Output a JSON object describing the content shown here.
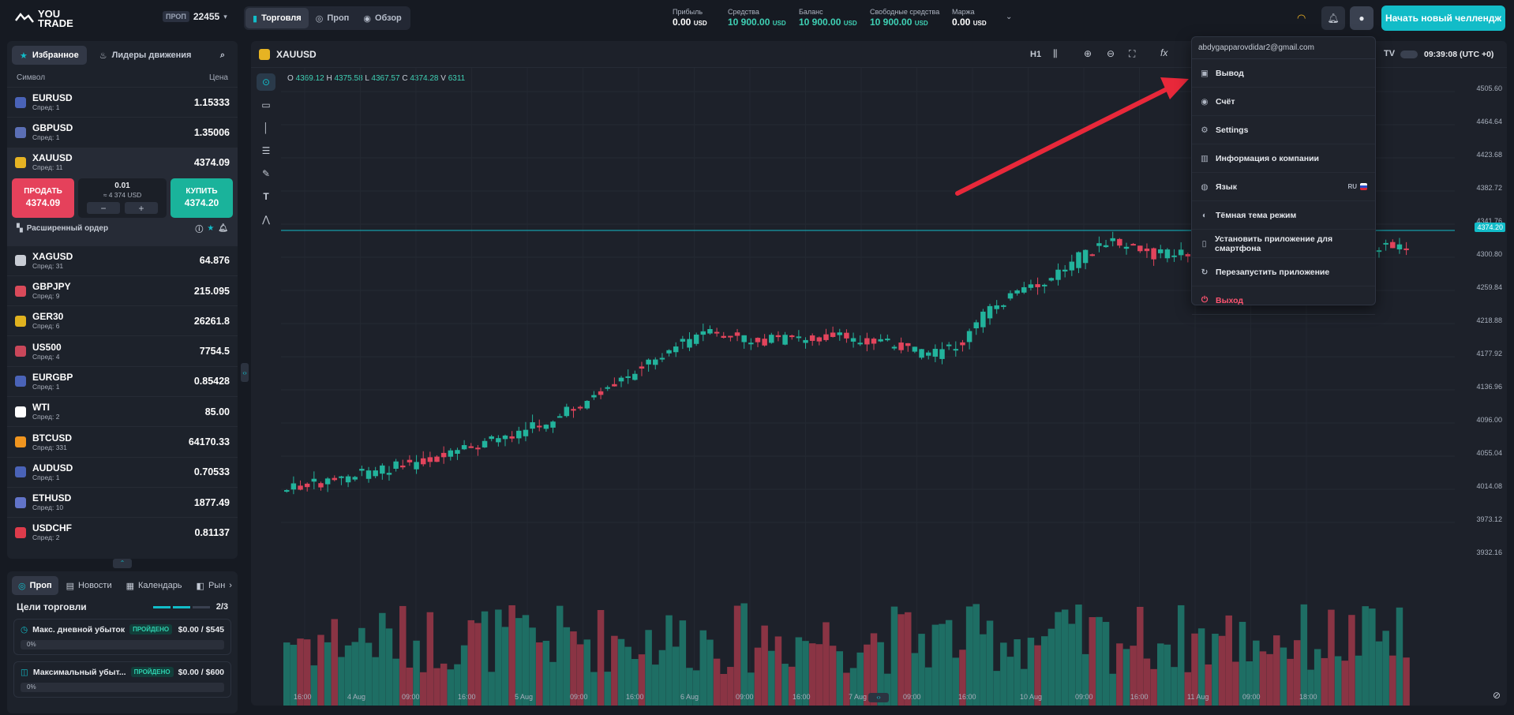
{
  "header": {
    "logo_line1": "YOU",
    "logo_line2": "TRADE",
    "account_tag": "ПРОП",
    "account_id": "22455",
    "modes": [
      {
        "label": "Торговля"
      },
      {
        "label": "Проп"
      },
      {
        "label": "Обзор"
      }
    ],
    "stats": [
      {
        "label": "Прибыль",
        "value": "0.00",
        "currency": "USD",
        "accent": false
      },
      {
        "label": "Средства",
        "value": "10 900.00",
        "currency": "USD",
        "accent": true
      },
      {
        "label": "Баланс",
        "value": "10 900.00",
        "currency": "USD",
        "accent": true
      },
      {
        "label": "Свободные средства",
        "value": "10 900.00",
        "currency": "USD",
        "accent": true
      },
      {
        "label": "Маржа",
        "value": "0.00",
        "currency": "USD",
        "accent": false
      }
    ],
    "cta": "Начать новый челлендж"
  },
  "watchlist": {
    "tabs": [
      {
        "label": "Избранное"
      },
      {
        "label": "Лидеры движения"
      }
    ],
    "col_symbol": "Символ",
    "col_price": "Цена",
    "rows": [
      {
        "symbol": "EURUSD",
        "spread": "Спред: 1",
        "price": "1.15333",
        "flag": "#4a63b8"
      },
      {
        "symbol": "GBPUSD",
        "spread": "Спред: 1",
        "price": "1.35006",
        "flag": "#5b6fb5"
      },
      {
        "symbol": "XAUUSD",
        "spread": "Спред: 11",
        "price": "4374.09",
        "flag": "#e6b323"
      },
      {
        "symbol": "XAGUSD",
        "spread": "Спред: 31",
        "price": "64.876",
        "flag": "#c8ccd4"
      },
      {
        "symbol": "GBPJPY",
        "spread": "Спред: 9",
        "price": "215.095",
        "flag": "#d94a5a"
      },
      {
        "symbol": "GER30",
        "spread": "Спред: 6",
        "price": "26261.8",
        "flag": "#e0b21f"
      },
      {
        "symbol": "US500",
        "spread": "Спред: 4",
        "price": "7754.5",
        "flag": "#c9475a"
      },
      {
        "symbol": "EURGBP",
        "spread": "Спред: 1",
        "price": "0.85428",
        "flag": "#4a63b8"
      },
      {
        "symbol": "WTI",
        "spread": "Спред: 2",
        "price": "85.00",
        "flag": "#ffffff"
      },
      {
        "symbol": "BTCUSD",
        "spread": "Спред: 331",
        "price": "64170.33",
        "flag": "#f0951f"
      },
      {
        "symbol": "AUDUSD",
        "spread": "Спред: 1",
        "price": "0.70533",
        "flag": "#4a63b8"
      },
      {
        "symbol": "ETHUSD",
        "spread": "Спред: 10",
        "price": "1877.49",
        "flag": "#6274c9"
      },
      {
        "symbol": "USDCHF",
        "spread": "Спред: 2",
        "price": "0.81137",
        "flag": "#dd3b4b"
      }
    ],
    "expanded": {
      "sell_label": "ПРОДАТЬ",
      "sell_price": "4374.09",
      "qty": "0.01",
      "qty_usd": "≈ 4 374 USD",
      "buy_label": "КУПИТЬ",
      "buy_price": "4374.20",
      "advanced": "Расширенный ордер"
    }
  },
  "bottom_panel": {
    "tabs": [
      {
        "label": "Проп"
      },
      {
        "label": "Новости"
      },
      {
        "label": "Календарь"
      },
      {
        "label": "Рын"
      }
    ],
    "goals_title": "Цели торговли",
    "goals_count": "2/3",
    "goals": [
      {
        "label": "Макс. дневной убыток",
        "status": "ПРОЙДЕНО",
        "amount": "$0.00 / $545",
        "progress": "0%"
      },
      {
        "label": "Максимальный убыт...",
        "status": "ПРОЙДЕНО",
        "amount": "$0.00 / $600",
        "progress": "0%"
      }
    ]
  },
  "chart": {
    "symbol": "XAUUSD",
    "timeframe": "H1",
    "time": "09:39:08 (UTC +0)",
    "ohlc": {
      "o": "4369.12",
      "h": "4375.58",
      "l": "4367.57",
      "c": "4374.28",
      "v": "6311"
    },
    "current_price": "4374.20",
    "price_color": "#12bcc8",
    "yticks": [
      "4505.60",
      "4464.64",
      "4423.68",
      "4382.72",
      "4341.76",
      "4300.80",
      "4259.84",
      "4218.88",
      "4177.92",
      "4136.96",
      "4096.00",
      "4055.04",
      "4014.08",
      "3973.12",
      "3932.16"
    ],
    "xticks": [
      "16:00",
      "4 Aug",
      "09:00",
      "16:00",
      "5 Aug",
      "09:00",
      "16:00",
      "6 Aug",
      "09:00",
      "16:00",
      "7 Aug",
      "09:00",
      "16:00",
      "10 Aug",
      "09:00",
      "16:00",
      "11 Aug",
      "09:00",
      "18:00"
    ]
  },
  "account_menu": {
    "email": "abdygapparovdidar2@gmail.com",
    "items": [
      {
        "label": "Вывод",
        "icon": "withdraw-icon"
      },
      {
        "label": "Счёт",
        "icon": "account-icon"
      },
      {
        "label": "Settings",
        "icon": "gear-icon"
      },
      {
        "label": "Информация о компании",
        "icon": "building-icon"
      },
      {
        "label": "Язык",
        "icon": "globe-icon",
        "extra": "RU"
      },
      {
        "label": "Тёмная тема режим",
        "icon": "toggle-icon"
      },
      {
        "label": "Установить приложение для смартфона",
        "icon": "phone-icon"
      },
      {
        "label": "Перезапустить приложение",
        "icon": "refresh-icon"
      },
      {
        "label": "Выход",
        "icon": "logout-icon",
        "danger": true
      }
    ]
  }
}
